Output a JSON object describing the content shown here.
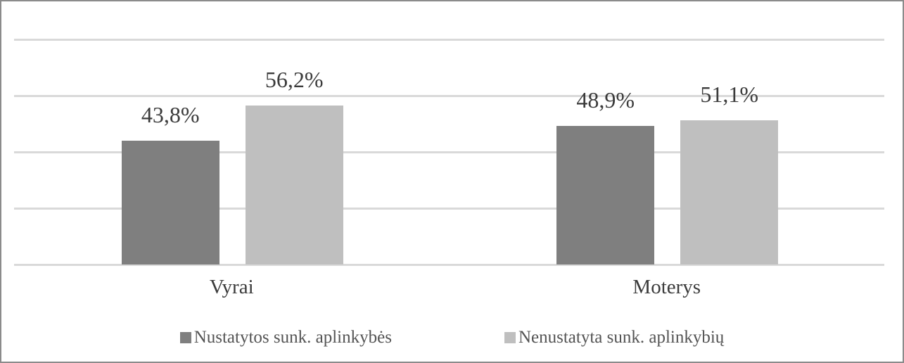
{
  "chart_data": {
    "type": "bar",
    "title": "",
    "xlabel": "",
    "ylabel": "",
    "categories": [
      "Vyrai",
      "Moterys"
    ],
    "series": [
      {
        "name": "Nustatytos sunk. aplinkybės",
        "color": "#7f7f7f",
        "values": [
          43.8,
          48.9
        ],
        "labels": [
          "43,8%",
          "48,9%"
        ]
      },
      {
        "name": "Nenustatyta sunk. aplinkybių",
        "color": "#bfbfbf",
        "values": [
          56.2,
          51.1
        ],
        "labels": [
          "56,2%",
          "51,1%"
        ]
      }
    ],
    "ylim": [
      0,
      80
    ],
    "gridline_step": 20,
    "grid": true,
    "y_axis_labels_visible": false,
    "legend_position": "bottom"
  },
  "colors": {
    "gridline": "#d9d9d9",
    "frame_border": "#8b8b8b",
    "value_label_text": "#3b3b3b",
    "legend_text": "#545454"
  }
}
